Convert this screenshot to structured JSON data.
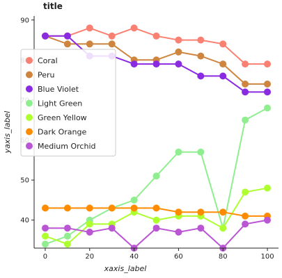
{
  "chart_data": {
    "type": "area",
    "title": "title",
    "xlabel": "xaxis_label",
    "ylabel": "yaxis_label",
    "xlim": [
      -5,
      105
    ],
    "ylim": [
      33,
      91
    ],
    "xticks": [
      "0",
      "20",
      "40",
      "60",
      "80",
      "100"
    ],
    "yticks": [
      "40",
      "50",
      "60",
      "70",
      "80",
      "90"
    ],
    "grid": false,
    "legend_position": "left",
    "x": [
      0,
      10,
      20,
      30,
      40,
      50,
      60,
      70,
      80,
      90,
      100
    ],
    "series": [
      {
        "name": "Coral",
        "color": "#fa8072",
        "values": [
          86,
          86,
          88,
          86,
          88,
          86,
          85,
          85,
          84,
          79,
          79
        ]
      },
      {
        "name": "Peru",
        "color": "#cd853f",
        "values": [
          86,
          84,
          84,
          84,
          80,
          80,
          82,
          81,
          79,
          74,
          74
        ]
      },
      {
        "name": "Blue Violet",
        "color": "#8a2be2",
        "values": [
          86,
          86,
          81,
          81,
          79,
          79,
          79,
          76,
          76,
          72,
          72
        ]
      },
      {
        "name": "Light Green",
        "color": "#90ee90",
        "values": [
          34,
          36,
          40,
          43,
          45,
          51,
          57,
          57,
          38,
          65,
          68
        ]
      },
      {
        "name": "Green Yellow",
        "color": "#adff2f",
        "values": [
          36,
          34,
          39,
          39,
          42,
          40,
          41,
          41,
          38,
          47,
          48
        ]
      },
      {
        "name": "Dark Orange",
        "color": "#ff8c00",
        "values": [
          43,
          43,
          43,
          43,
          43,
          43,
          42,
          42,
          42,
          41,
          41
        ]
      },
      {
        "name": "Medium Orchid",
        "color": "#ba55d3",
        "values": [
          38,
          38,
          37,
          38,
          33,
          38,
          37,
          38,
          33,
          39,
          40
        ]
      }
    ]
  }
}
